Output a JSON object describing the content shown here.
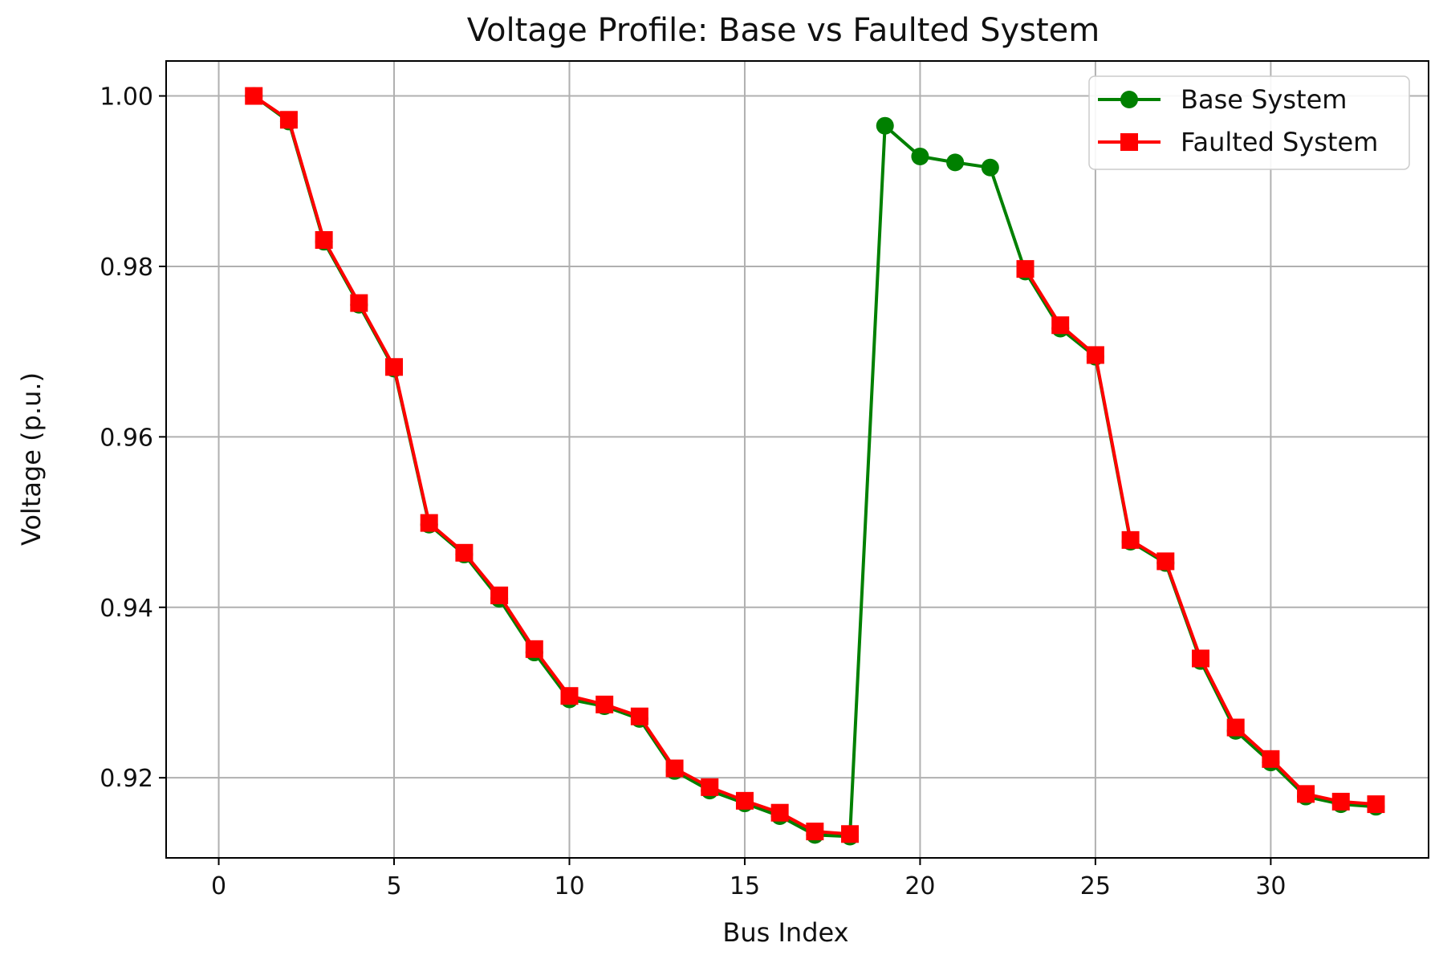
{
  "chart_data": {
    "type": "line",
    "title": "Voltage Profile: Base vs Faulted System",
    "xlabel": "Bus Index",
    "ylabel": "Voltage (p.u.)",
    "xlim": [
      -1.5,
      34.5
    ],
    "ylim": [
      0.9106,
      1.0041
    ],
    "xticks": [
      0,
      5,
      10,
      15,
      20,
      25,
      30
    ],
    "yticks": [
      0.92,
      0.94,
      0.96,
      0.98,
      1.0
    ],
    "ytick_labels": [
      "0.92",
      "0.94",
      "0.96",
      "0.98",
      "1.00"
    ],
    "grid": true,
    "legend_position": "top-right",
    "series": [
      {
        "name": "Base System",
        "color": "#008000",
        "marker": "circle",
        "x": [
          1,
          2,
          3,
          4,
          5,
          6,
          7,
          8,
          9,
          10,
          11,
          12,
          13,
          14,
          15,
          16,
          17,
          18,
          19,
          20,
          21,
          22,
          23,
          24,
          25,
          26,
          27,
          28,
          29,
          30,
          31,
          32,
          33
        ],
        "y": [
          1.0,
          0.997,
          0.9829,
          0.9755,
          0.968,
          0.9497,
          0.9462,
          0.941,
          0.9347,
          0.9292,
          0.9284,
          0.9269,
          0.9208,
          0.9185,
          0.917,
          0.9155,
          0.9133,
          0.9131,
          0.9965,
          0.9929,
          0.9922,
          0.9916,
          0.9794,
          0.9727,
          0.9694,
          0.9477,
          0.9452,
          0.9337,
          0.9255,
          0.9218,
          0.9178,
          0.9169,
          0.9166
        ]
      },
      {
        "name": "Faulted System",
        "color": "#ff0000",
        "marker": "square",
        "x": [
          1,
          2,
          3,
          4,
          5,
          6,
          7,
          8,
          9,
          10,
          11,
          12,
          13,
          14,
          15,
          16,
          17,
          18,
          23,
          24,
          25,
          26,
          27,
          28,
          29,
          30,
          31,
          32,
          33
        ],
        "y": [
          1.0,
          0.9972,
          0.9831,
          0.9757,
          0.9682,
          0.9499,
          0.9464,
          0.9414,
          0.9351,
          0.9296,
          0.9286,
          0.9272,
          0.9211,
          0.9189,
          0.9173,
          0.9159,
          0.9137,
          0.9134,
          0.9797,
          0.9731,
          0.9696,
          0.9479,
          0.9454,
          0.934,
          0.9259,
          0.9222,
          0.9181,
          0.9172,
          0.9169
        ]
      }
    ]
  }
}
